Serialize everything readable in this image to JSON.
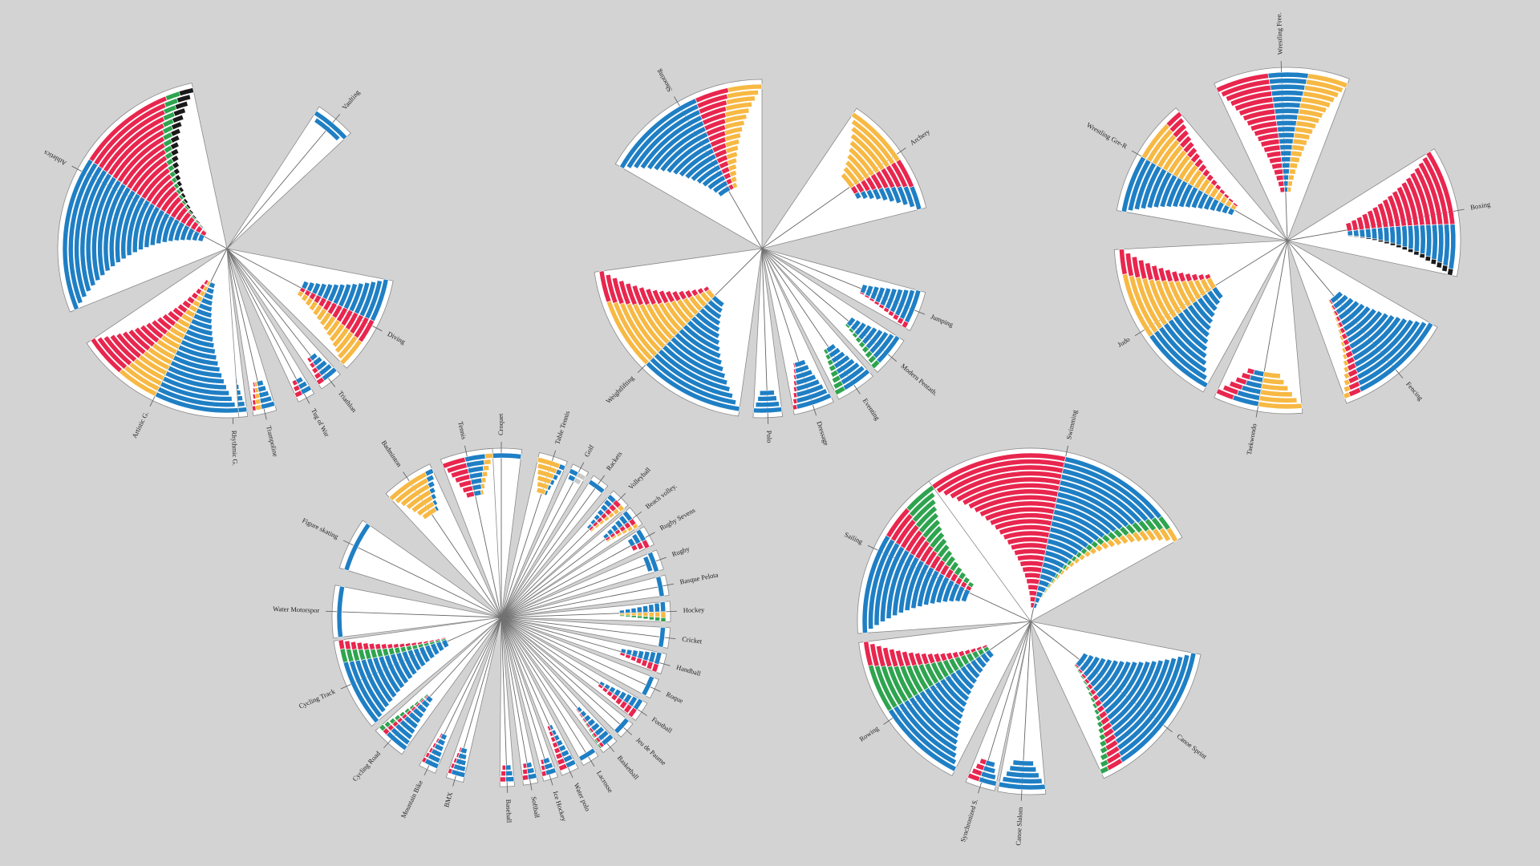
{
  "palette": {
    "blue": "#1f7fc4",
    "red": "#e8264e",
    "yellow": "#f7b944",
    "green": "#2ea44f",
    "black": "#1a1a1a",
    "grey": "#c9c9c9"
  },
  "chart_data": [
    {
      "type": "radial-bar",
      "group": "athletics-gymnastics",
      "sectors": [
        {
          "label": "Athletics",
          "rows": 24,
          "segments": [
            [
              "blue",
              0.55
            ],
            [
              "red",
              0.35
            ],
            [
              "green",
              0.05
            ],
            [
              "black",
              0.05
            ]
          ]
        },
        {
          "label": "Vaulting",
          "rows": 2,
          "segments": [
            [
              "blue",
              1.0
            ]
          ]
        },
        {
          "label": "Diving",
          "rows": 14,
          "segments": [
            [
              "blue",
              0.45
            ],
            [
              "red",
              0.25
            ],
            [
              "yellow",
              0.3
            ]
          ]
        },
        {
          "label": "Triathlon",
          "rows": 5,
          "segments": [
            [
              "blue",
              0.7
            ],
            [
              "red",
              0.3
            ]
          ]
        },
        {
          "label": "Tug of War",
          "rows": 3,
          "segments": [
            [
              "blue",
              0.6
            ],
            [
              "red",
              0.4
            ]
          ]
        },
        {
          "label": "Trampoline",
          "rows": 5,
          "segments": [
            [
              "blue",
              0.6
            ],
            [
              "yellow",
              0.25
            ],
            [
              "red",
              0.15
            ]
          ]
        },
        {
          "label": "Rhythmic G.",
          "rows": 6,
          "segments": [
            [
              "blue",
              0.9
            ],
            [
              "red",
              0.1
            ]
          ]
        },
        {
          "label": "Artistic G.",
          "rows": 22,
          "segments": [
            [
              "blue",
              0.5
            ],
            [
              "yellow",
              0.25
            ],
            [
              "red",
              0.25
            ]
          ]
        }
      ]
    },
    {
      "type": "radial-bar",
      "group": "shooting-equestrian",
      "sectors": [
        {
          "label": "Shooting",
          "rows": 17,
          "segments": [
            [
              "blue",
              0.6
            ],
            [
              "red",
              0.2
            ],
            [
              "yellow",
              0.2
            ]
          ]
        },
        {
          "label": "Archery",
          "rows": 10,
          "segments": [
            [
              "yellow",
              0.55
            ],
            [
              "red",
              0.25
            ],
            [
              "blue",
              0.2
            ]
          ]
        },
        {
          "label": "Jumping",
          "rows": 10,
          "segments": [
            [
              "blue",
              0.85
            ],
            [
              "red",
              0.15
            ]
          ]
        },
        {
          "label": "Modern Pentath.",
          "rows": 9,
          "segments": [
            [
              "blue",
              0.8
            ],
            [
              "green",
              0.2
            ]
          ]
        },
        {
          "label": "Eventing",
          "rows": 8,
          "segments": [
            [
              "blue",
              0.75
            ],
            [
              "green",
              0.25
            ]
          ]
        },
        {
          "label": "Dressage",
          "rows": 8,
          "segments": [
            [
              "blue",
              0.9
            ],
            [
              "red",
              0.1
            ]
          ]
        },
        {
          "label": "Polo",
          "rows": 4,
          "segments": [
            [
              "blue",
              1.0
            ]
          ]
        },
        {
          "label": "Weightlifting",
          "rows": 17,
          "segments": [
            [
              "blue",
              0.5
            ],
            [
              "yellow",
              0.35
            ],
            [
              "red",
              0.15
            ]
          ]
        }
      ]
    },
    {
      "type": "radial-bar",
      "group": "combat",
      "sectors": [
        {
          "label": "Wrestling Free.",
          "rows": 20,
          "segments": [
            [
              "red",
              0.4
            ],
            [
              "blue",
              0.3
            ],
            [
              "yellow",
              0.3
            ]
          ]
        },
        {
          "label": "Boxing",
          "rows": 18,
          "segments": [
            [
              "red",
              0.6
            ],
            [
              "blue",
              0.35
            ],
            [
              "black",
              0.05
            ]
          ]
        },
        {
          "label": "Fencing",
          "rows": 16,
          "segments": [
            [
              "blue",
              0.85
            ],
            [
              "red",
              0.1
            ],
            [
              "yellow",
              0.05
            ]
          ]
        },
        {
          "label": "Taekwondo",
          "rows": 6,
          "segments": [
            [
              "yellow",
              0.5
            ],
            [
              "blue",
              0.3
            ],
            [
              "red",
              0.2
            ]
          ]
        },
        {
          "label": "Judo",
          "rows": 14,
          "segments": [
            [
              "blue",
              0.45
            ],
            [
              "yellow",
              0.4
            ],
            [
              "red",
              0.15
            ]
          ]
        },
        {
          "label": "Wrestling Gre-R",
          "rows": 18,
          "segments": [
            [
              "blue",
              0.5
            ],
            [
              "yellow",
              0.35
            ],
            [
              "red",
              0.15
            ]
          ]
        }
      ]
    },
    {
      "type": "radial-bar",
      "group": "team-and-minor-sports",
      "sectors": [
        {
          "label": "Croquet",
          "rows": 1,
          "segments": [
            [
              "blue",
              1.0
            ]
          ]
        },
        {
          "label": "Table Tennis",
          "rows": 6,
          "segments": [
            [
              "yellow",
              0.8
            ],
            [
              "blue",
              0.2
            ]
          ]
        },
        {
          "label": "Golf",
          "rows": 2,
          "segments": [
            [
              "blue",
              0.5
            ],
            [
              "grey",
              0.5
            ]
          ]
        },
        {
          "label": "Rackets",
          "rows": 1,
          "segments": [
            [
              "blue",
              1.0
            ]
          ]
        },
        {
          "label": "Volleyball",
          "rows": 7,
          "segments": [
            [
              "blue",
              0.4
            ],
            [
              "red",
              0.35
            ],
            [
              "yellow",
              0.25
            ]
          ]
        },
        {
          "label": "Beach volley.",
          "rows": 6,
          "segments": [
            [
              "blue",
              0.5
            ],
            [
              "red",
              0.3
            ],
            [
              "yellow",
              0.2
            ]
          ]
        },
        {
          "label": "Rugby Sevens",
          "rows": 3,
          "segments": [
            [
              "blue",
              0.6
            ],
            [
              "red",
              0.4
            ]
          ]
        },
        {
          "label": "Rugby",
          "rows": 2,
          "segments": [
            [
              "blue",
              1.0
            ]
          ]
        },
        {
          "label": "Basque Pelota",
          "rows": 1,
          "segments": [
            [
              "blue",
              1.0
            ]
          ]
        },
        {
          "label": "Hockey",
          "rows": 8,
          "segments": [
            [
              "blue",
              0.5
            ],
            [
              "yellow",
              0.3
            ],
            [
              "green",
              0.2
            ]
          ]
        },
        {
          "label": "Cricket",
          "rows": 1,
          "segments": [
            [
              "blue",
              1.0
            ]
          ]
        },
        {
          "label": "Handball",
          "rows": 7,
          "segments": [
            [
              "blue",
              0.6
            ],
            [
              "red",
              0.4
            ]
          ]
        },
        {
          "label": "Roque",
          "rows": 1,
          "segments": [
            [
              "blue",
              1.0
            ]
          ]
        },
        {
          "label": "Football",
          "rows": 8,
          "segments": [
            [
              "blue",
              0.55
            ],
            [
              "red",
              0.45
            ]
          ]
        },
        {
          "label": "Jeu de Paume",
          "rows": 1,
          "segments": [
            [
              "blue",
              1.0
            ]
          ]
        },
        {
          "label": "Basketball",
          "rows": 8,
          "segments": [
            [
              "blue",
              0.7
            ],
            [
              "red",
              0.2
            ],
            [
              "green",
              0.1
            ]
          ]
        },
        {
          "label": "Lacrosse",
          "rows": 1,
          "segments": [
            [
              "blue",
              1.0
            ]
          ]
        },
        {
          "label": "Water polo",
          "rows": 8,
          "segments": [
            [
              "blue",
              0.55
            ],
            [
              "red",
              0.45
            ]
          ]
        },
        {
          "label": "Ice Hockey",
          "rows": 3,
          "segments": [
            [
              "blue",
              0.7
            ],
            [
              "red",
              0.3
            ]
          ]
        },
        {
          "label": "Softball",
          "rows": 3,
          "segments": [
            [
              "blue",
              0.6
            ],
            [
              "red",
              0.4
            ]
          ]
        },
        {
          "label": "Baseball",
          "rows": 3,
          "segments": [
            [
              "blue",
              0.6
            ],
            [
              "red",
              0.4
            ]
          ]
        },
        {
          "label": "BMX",
          "rows": 5,
          "segments": [
            [
              "blue",
              0.8
            ],
            [
              "red",
              0.2
            ]
          ]
        },
        {
          "label": "Mountain Bike",
          "rows": 6,
          "segments": [
            [
              "blue",
              0.8
            ],
            [
              "red",
              0.2
            ]
          ]
        },
        {
          "label": "Cycling Road",
          "rows": 10,
          "segments": [
            [
              "blue",
              0.7
            ],
            [
              "red",
              0.15
            ],
            [
              "green",
              0.15
            ]
          ]
        },
        {
          "label": "Cycling Track",
          "rows": 18,
          "segments": [
            [
              "blue",
              0.75
            ],
            [
              "green",
              0.15
            ],
            [
              "red",
              0.1
            ]
          ]
        },
        {
          "label": "Water Motorspor",
          "rows": 1,
          "segments": [
            [
              "blue",
              1.0
            ]
          ]
        },
        {
          "label": "Figure skating",
          "rows": 1,
          "segments": [
            [
              "blue",
              1.0
            ]
          ]
        },
        {
          "label": "Badminton",
          "rows": 7,
          "segments": [
            [
              "yellow",
              0.85
            ],
            [
              "blue",
              0.15
            ]
          ]
        },
        {
          "label": "Tennis",
          "rows": 7,
          "segments": [
            [
              "red",
              0.45
            ],
            [
              "blue",
              0.4
            ],
            [
              "yellow",
              0.15
            ]
          ]
        }
      ]
    },
    {
      "type": "radial-bar",
      "group": "water-sports",
      "sectors": [
        {
          "label": "Swimming",
          "rows": 26,
          "segments": [
            [
              "red",
              0.5
            ],
            [
              "blue",
              0.4
            ],
            [
              "green",
              0.05
            ],
            [
              "yellow",
              0.05
            ]
          ]
        },
        {
          "label": "Canoe Sprint",
          "rows": 18,
          "segments": [
            [
              "blue",
              0.85
            ],
            [
              "red",
              0.1
            ],
            [
              "green",
              0.05
            ]
          ]
        },
        {
          "label": "Canoe Slalom",
          "rows": 5,
          "segments": [
            [
              "blue",
              1.0
            ]
          ]
        },
        {
          "label": "Synchronized S.",
          "rows": 4,
          "segments": [
            [
              "blue",
              0.6
            ],
            [
              "red",
              0.4
            ]
          ]
        },
        {
          "label": "Rowing",
          "rows": 20,
          "segments": [
            [
              "blue",
              0.55
            ],
            [
              "green",
              0.3
            ],
            [
              "red",
              0.15
            ]
          ]
        },
        {
          "label": "Sailing",
          "rows": 17,
          "segments": [
            [
              "blue",
              0.6
            ],
            [
              "red",
              0.2
            ],
            [
              "green",
              0.2
            ]
          ]
        }
      ]
    }
  ]
}
